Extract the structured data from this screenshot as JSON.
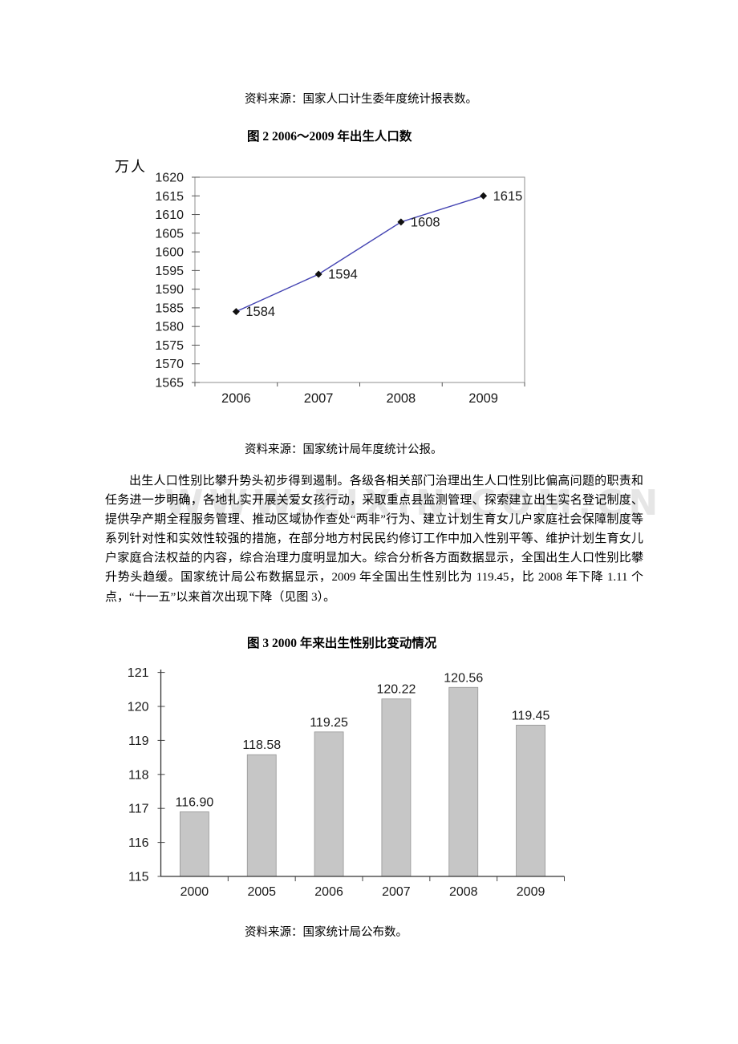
{
  "page": {
    "source_note_1": "资料来源：国家人口计生委年度统计报表数。",
    "source_note_2": "资料来源：国家统计局年度统计公报。",
    "source_note_3": "资料来源：国家统计局公布数。",
    "watermark": "WWW.ZIXIN.COM.CN",
    "paragraph": "出生人口性别比攀升势头初步得到遏制。各级各相关部门治理出生人口性别比偏高问题的职责和任务进一步明确，各地扎实开展关爱女孩行动，采取重点县监测管理、探索建立出生实名登记制度、提供孕产期全程服务管理、推动区域协作查处“两非”行为、建立计划生育女儿户家庭社会保障制度等系列针对性和实效性较强的措施，在部分地方村民民约修订工作中加入性别平等、维护计划生育女儿户家庭合法权益的内容，综合治理力度明显加大。综合分析各方面数据显示，全国出生人口性别比攀升势头趋缓。国家统计局公布数据显示，2009 年全国出生性别比为 119.45，比 2008 年下降 1.11 个点，“十一五”以来首次出现下降（见图 3）。"
  },
  "chart_data": [
    {
      "type": "line",
      "title": "图 2 2006～2009 年出生人口数",
      "ylabel": "万人",
      "xlabel": "",
      "categories": [
        "2006",
        "2007",
        "2008",
        "2009"
      ],
      "values": [
        1584,
        1594,
        1608,
        1615
      ],
      "data_labels": [
        "1584",
        "1594",
        "1608",
        "1615"
      ],
      "ylim": [
        1565,
        1620
      ],
      "ytick_step": 5,
      "grid": "off",
      "legend": "none",
      "line_color": "#4444b2",
      "marker": "diamond",
      "marker_color": "#111111",
      "border_color": "#8f8f8f"
    },
    {
      "type": "bar",
      "title": "图 3 2000 年来出生性别比变动情况",
      "xlabel": "",
      "ylabel": "",
      "categories": [
        "2000",
        "2005",
        "2006",
        "2007",
        "2008",
        "2009"
      ],
      "values": [
        116.9,
        118.58,
        119.25,
        120.22,
        120.56,
        119.45
      ],
      "data_labels": [
        "116.90",
        "118.58",
        "119.25",
        "120.22",
        "120.56",
        "119.45"
      ],
      "ylim": [
        115,
        121
      ],
      "ytick_step": 1,
      "grid": "off",
      "legend": "none",
      "bar_color": "#c6c6c6",
      "bar_border_color": "#959595",
      "axis_color": "#333333"
    }
  ]
}
